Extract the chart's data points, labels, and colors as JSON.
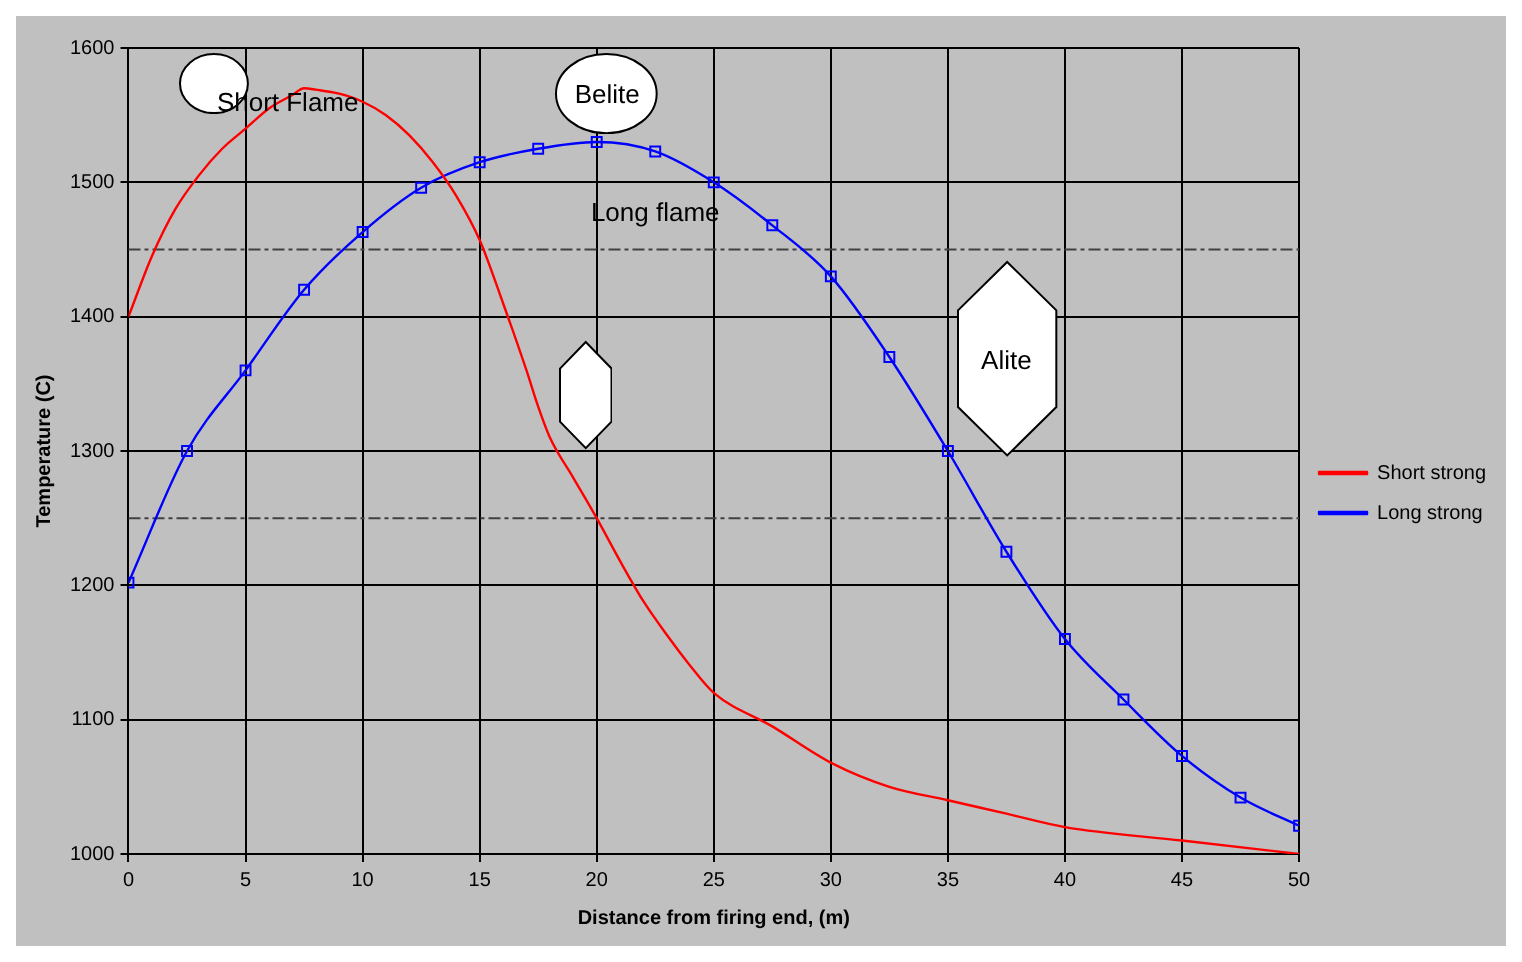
{
  "chart_data": {
    "type": "line",
    "xlabel": "Distance from firing end, (m)",
    "ylabel": "Temperature (C)",
    "xlim": [
      0,
      50
    ],
    "xticks": [
      0,
      5,
      10,
      15,
      20,
      25,
      30,
      35,
      40,
      45,
      50
    ],
    "ylim": [
      1000,
      1600
    ],
    "yticks": [
      1000,
      1100,
      1200,
      1300,
      1400,
      1500,
      1600
    ],
    "grid": true,
    "legend": "right",
    "series": [
      {
        "name": "Short strong",
        "color": "#ff0000",
        "marker": "none",
        "x": [
          0,
          1,
          2,
          3,
          4,
          5,
          6,
          7,
          7.5,
          8,
          9,
          10,
          11,
          12,
          13,
          14,
          15,
          16,
          17,
          17.5,
          18,
          19,
          20,
          21,
          22,
          23,
          24,
          25,
          27.5,
          30,
          32.5,
          35,
          37.5,
          40,
          45,
          50
        ],
        "values": [
          1400,
          1445,
          1480,
          1505,
          1525,
          1540,
          1555,
          1565,
          1570,
          1569,
          1566,
          1560,
          1550,
          1535,
          1515,
          1490,
          1457,
          1410,
          1360,
          1333,
          1310,
          1280,
          1250,
          1218,
          1188,
          1163,
          1140,
          1120,
          1095,
          1068,
          1050,
          1040,
          1030,
          1020,
          1010,
          1000
        ]
      },
      {
        "name": "Long strong",
        "color": "#0000ff",
        "marker": "square",
        "x": [
          0,
          2.5,
          5,
          7.5,
          10,
          12.5,
          15,
          17.5,
          20,
          22.5,
          25,
          27.5,
          30,
          32.5,
          35,
          37.5,
          40,
          42.5,
          45,
          47.5,
          50
        ],
        "values": [
          1202,
          1300,
          1360,
          1420,
          1463,
          1496,
          1515,
          1525,
          1530,
          1523,
          1500,
          1468,
          1430,
          1370,
          1300,
          1225,
          1160,
          1115,
          1073,
          1042,
          1021
        ]
      }
    ],
    "ref_lines": [
      {
        "axis": "y",
        "value": 1450,
        "color": "#404040",
        "line_style": "dashed"
      },
      {
        "axis": "y",
        "value": 1250,
        "color": "#404040",
        "line_style": "dashed"
      }
    ],
    "annotations": [
      "Short Flame",
      "Long flame",
      "Belite",
      "Alite"
    ]
  }
}
